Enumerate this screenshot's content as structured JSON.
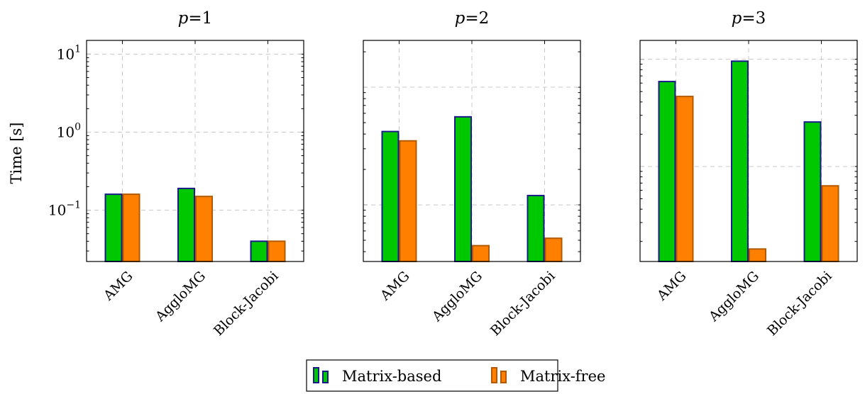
{
  "chart_data": {
    "type": "bar",
    "scale": "log",
    "ylabel": "Time [s]",
    "categories": [
      "AMG",
      "AggloMG",
      "Block-Jacobi"
    ],
    "legend": {
      "placement": "bottom-center",
      "entries": [
        {
          "name": "Matrix-based",
          "color": "#00c800",
          "edge": "#1a1a8c"
        },
        {
          "name": "Matrix-free",
          "color": "#ff8000",
          "edge": "#b35a00"
        }
      ]
    },
    "panels": [
      {
        "title": "p=1",
        "title_italic": "p",
        "title_rest": "=1",
        "ylim": [
          0.022,
          15
        ],
        "yticks": [
          {
            "value": 0.1,
            "base": "10",
            "exp": "−1"
          },
          {
            "value": 1,
            "base": "10",
            "exp": "0"
          },
          {
            "value": 10,
            "base": "10",
            "exp": "1"
          }
        ],
        "show_tick_labels": true,
        "series": [
          {
            "name": "Matrix-based",
            "values": [
              0.16,
              0.19,
              0.04
            ]
          },
          {
            "name": "Matrix-free",
            "values": [
              0.16,
              0.15,
              0.04
            ]
          }
        ]
      },
      {
        "title": "p=2",
        "title_italic": "p",
        "title_rest": "=2",
        "ylim": [
          0.033,
          2.5
        ],
        "yticks": [
          {
            "value": 0.1
          },
          {
            "value": 1
          }
        ],
        "show_tick_labels": false,
        "series": [
          {
            "name": "Matrix-based",
            "values": [
              0.42,
              0.56,
              0.12
            ]
          },
          {
            "name": "Matrix-free",
            "values": [
              0.35,
              0.045,
              0.052
            ]
          }
        ]
      },
      {
        "title": "p=3",
        "title_italic": "p",
        "title_rest": "=3",
        "ylim": [
          0.13,
          15
        ],
        "yticks": [
          {
            "value": 1
          },
          {
            "value": 10
          }
        ],
        "show_tick_labels": false,
        "series": [
          {
            "name": "Matrix-based",
            "values": [
              6.2,
              9.6,
              2.6
            ]
          },
          {
            "name": "Matrix-free",
            "values": [
              4.5,
              0.17,
              0.66
            ]
          }
        ]
      }
    ]
  }
}
